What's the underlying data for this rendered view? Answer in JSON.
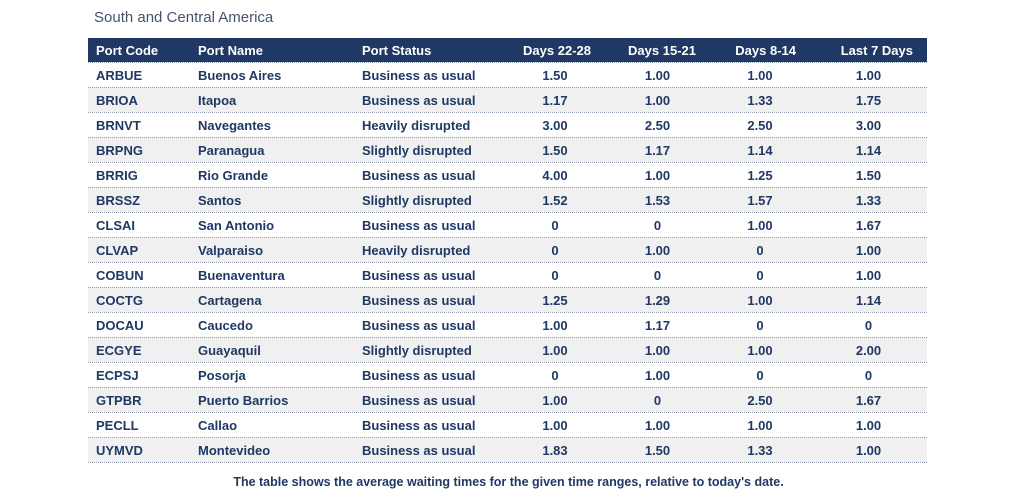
{
  "colors": {
    "header_bg": "#203864",
    "header_text": "#FFFFFF",
    "body_text": "#1F3864",
    "title_text": "#44546A",
    "row_alt_bg": "#F0F0F0",
    "row_divider": "#96A2B4"
  },
  "chart_data": {
    "type": "table",
    "title": "South and Central America",
    "note": "The table shows the average waiting times for the given time ranges, relative to today's date.",
    "columns": [
      "Port Code",
      "Port Name",
      "Port Status",
      "Days 22-28",
      "Days 15-21",
      "Days 8-14",
      "Last 7 Days"
    ],
    "rows": [
      {
        "code": "ARBUE",
        "name": "Buenos Aires",
        "status": "Business as usual",
        "d22_28": "1.50",
        "d15_21": "1.00",
        "d8_14": "1.00",
        "last7": "1.00"
      },
      {
        "code": "BRIOA",
        "name": "Itapoa",
        "status": "Business as usual",
        "d22_28": "1.17",
        "d15_21": "1.00",
        "d8_14": "1.33",
        "last7": "1.75"
      },
      {
        "code": "BRNVT",
        "name": "Navegantes",
        "status": "Heavily disrupted",
        "d22_28": "3.00",
        "d15_21": "2.50",
        "d8_14": "2.50",
        "last7": "3.00"
      },
      {
        "code": "BRPNG",
        "name": "Paranagua",
        "status": "Slightly disrupted",
        "d22_28": "1.50",
        "d15_21": "1.17",
        "d8_14": "1.14",
        "last7": "1.14"
      },
      {
        "code": "BRRIG",
        "name": "Rio Grande",
        "status": "Business as usual",
        "d22_28": "4.00",
        "d15_21": "1.00",
        "d8_14": "1.25",
        "last7": "1.50"
      },
      {
        "code": "BRSSZ",
        "name": "Santos",
        "status": "Slightly disrupted",
        "d22_28": "1.52",
        "d15_21": "1.53",
        "d8_14": "1.57",
        "last7": "1.33"
      },
      {
        "code": "CLSAI",
        "name": "San Antonio",
        "status": "Business as usual",
        "d22_28": "0",
        "d15_21": "0",
        "d8_14": "1.00",
        "last7": "1.67"
      },
      {
        "code": "CLVAP",
        "name": "Valparaiso",
        "status": "Heavily disrupted",
        "d22_28": "0",
        "d15_21": "1.00",
        "d8_14": "0",
        "last7": "1.00"
      },
      {
        "code": "COBUN",
        "name": "Buenaventura",
        "status": "Business as usual",
        "d22_28": "0",
        "d15_21": "0",
        "d8_14": "0",
        "last7": "1.00"
      },
      {
        "code": "COCTG",
        "name": "Cartagena",
        "status": "Business as usual",
        "d22_28": "1.25",
        "d15_21": "1.29",
        "d8_14": "1.00",
        "last7": "1.14"
      },
      {
        "code": "DOCAU",
        "name": "Caucedo",
        "status": "Business as usual",
        "d22_28": "1.00",
        "d15_21": "1.17",
        "d8_14": "0",
        "last7": "0"
      },
      {
        "code": "ECGYE",
        "name": "Guayaquil",
        "status": "Slightly disrupted",
        "d22_28": "1.00",
        "d15_21": "1.00",
        "d8_14": "1.00",
        "last7": "2.00"
      },
      {
        "code": "ECPSJ",
        "name": "Posorja",
        "status": "Business as usual",
        "d22_28": "0",
        "d15_21": "1.00",
        "d8_14": "0",
        "last7": "0"
      },
      {
        "code": "GTPBR",
        "name": "Puerto Barrios",
        "status": "Business as usual",
        "d22_28": "1.00",
        "d15_21": "0",
        "d8_14": "2.50",
        "last7": "1.67"
      },
      {
        "code": "PECLL",
        "name": "Callao",
        "status": "Business as usual",
        "d22_28": "1.00",
        "d15_21": "1.00",
        "d8_14": "1.00",
        "last7": "1.00"
      },
      {
        "code": "UYMVD",
        "name": "Montevideo",
        "status": "Business as usual",
        "d22_28": "1.83",
        "d15_21": "1.50",
        "d8_14": "1.33",
        "last7": "1.00"
      }
    ]
  }
}
